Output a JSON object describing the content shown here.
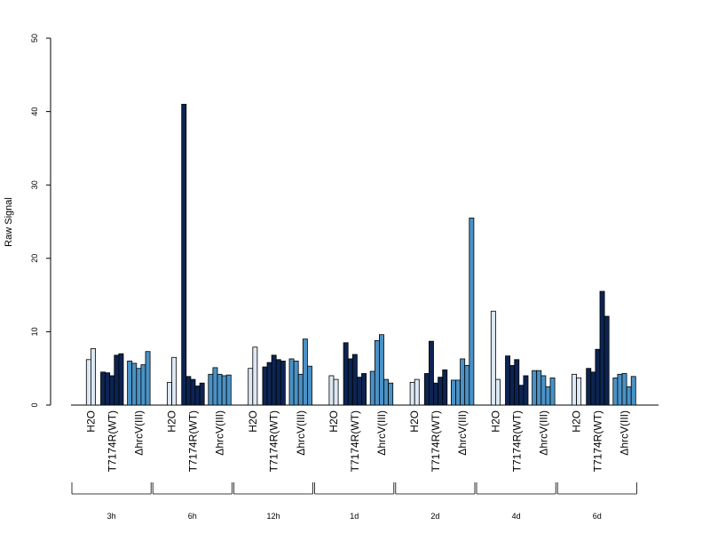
{
  "chart_data": {
    "type": "bar",
    "title": "",
    "xlabel": "",
    "ylabel": "Raw Signal",
    "ylim": [
      0,
      50
    ],
    "yticks": [
      "0",
      "10",
      "20",
      "30",
      "40",
      "50"
    ],
    "grid": false,
    "legend": "none",
    "categories": [
      "H2O",
      "T7174R(WT)",
      "ΔhrcV(III)"
    ],
    "colors": {
      "H2O": "#dde8f4",
      "T7174R(WT)": "#0c2452",
      "ΔhrcV(III)": "#4a92c6"
    },
    "groups": [
      {
        "time": "3h",
        "H2O": [
          6.2,
          7.7
        ],
        "T7174R(WT)": [
          4.5,
          4.4,
          4.0,
          6.8,
          7.0
        ],
        "ΔhrcV(III)": [
          6.0,
          5.7,
          5.0,
          5.5,
          7.3
        ]
      },
      {
        "time": "6h",
        "H2O": [
          3.1,
          6.5
        ],
        "T7174R(WT)": [
          41.0,
          3.9,
          3.5,
          2.6,
          3.0
        ],
        "ΔhrcV(III)": [
          4.2,
          5.1,
          4.2,
          4.0,
          4.1
        ]
      },
      {
        "time": "12h",
        "H2O": [
          5.0,
          7.9
        ],
        "T7174R(WT)": [
          5.2,
          5.8,
          6.8,
          6.2,
          6.0
        ],
        "ΔhrcV(III)": [
          6.3,
          6.0,
          4.2,
          9.0,
          5.3
        ]
      },
      {
        "time": "1d",
        "H2O": [
          4.0,
          3.5
        ],
        "T7174R(WT)": [
          8.5,
          6.3,
          6.9,
          3.8,
          4.3
        ],
        "ΔhrcV(III)": [
          4.6,
          8.8,
          9.6,
          3.5,
          3.0
        ]
      },
      {
        "time": "2d",
        "H2O": [
          3.1,
          3.5
        ],
        "T7174R(WT)": [
          4.3,
          8.7,
          3.0,
          3.8,
          4.8
        ],
        "ΔhrcV(III)": [
          3.4,
          3.4,
          6.3,
          5.4,
          25.5
        ]
      },
      {
        "time": "4d",
        "H2O": [
          12.8,
          3.5
        ],
        "T7174R(WT)": [
          6.7,
          5.4,
          6.2,
          2.7,
          4.0
        ],
        "ΔhrcV(III)": [
          4.7,
          4.7,
          4.0,
          2.5,
          3.7
        ]
      },
      {
        "time": "6d",
        "H2O": [
          4.2,
          3.7
        ],
        "T7174R(WT)": [
          5.0,
          4.5,
          7.6,
          15.5,
          12.1
        ],
        "ΔhrcV(III)": [
          3.7,
          4.2,
          4.3,
          2.5,
          3.9
        ]
      }
    ]
  }
}
